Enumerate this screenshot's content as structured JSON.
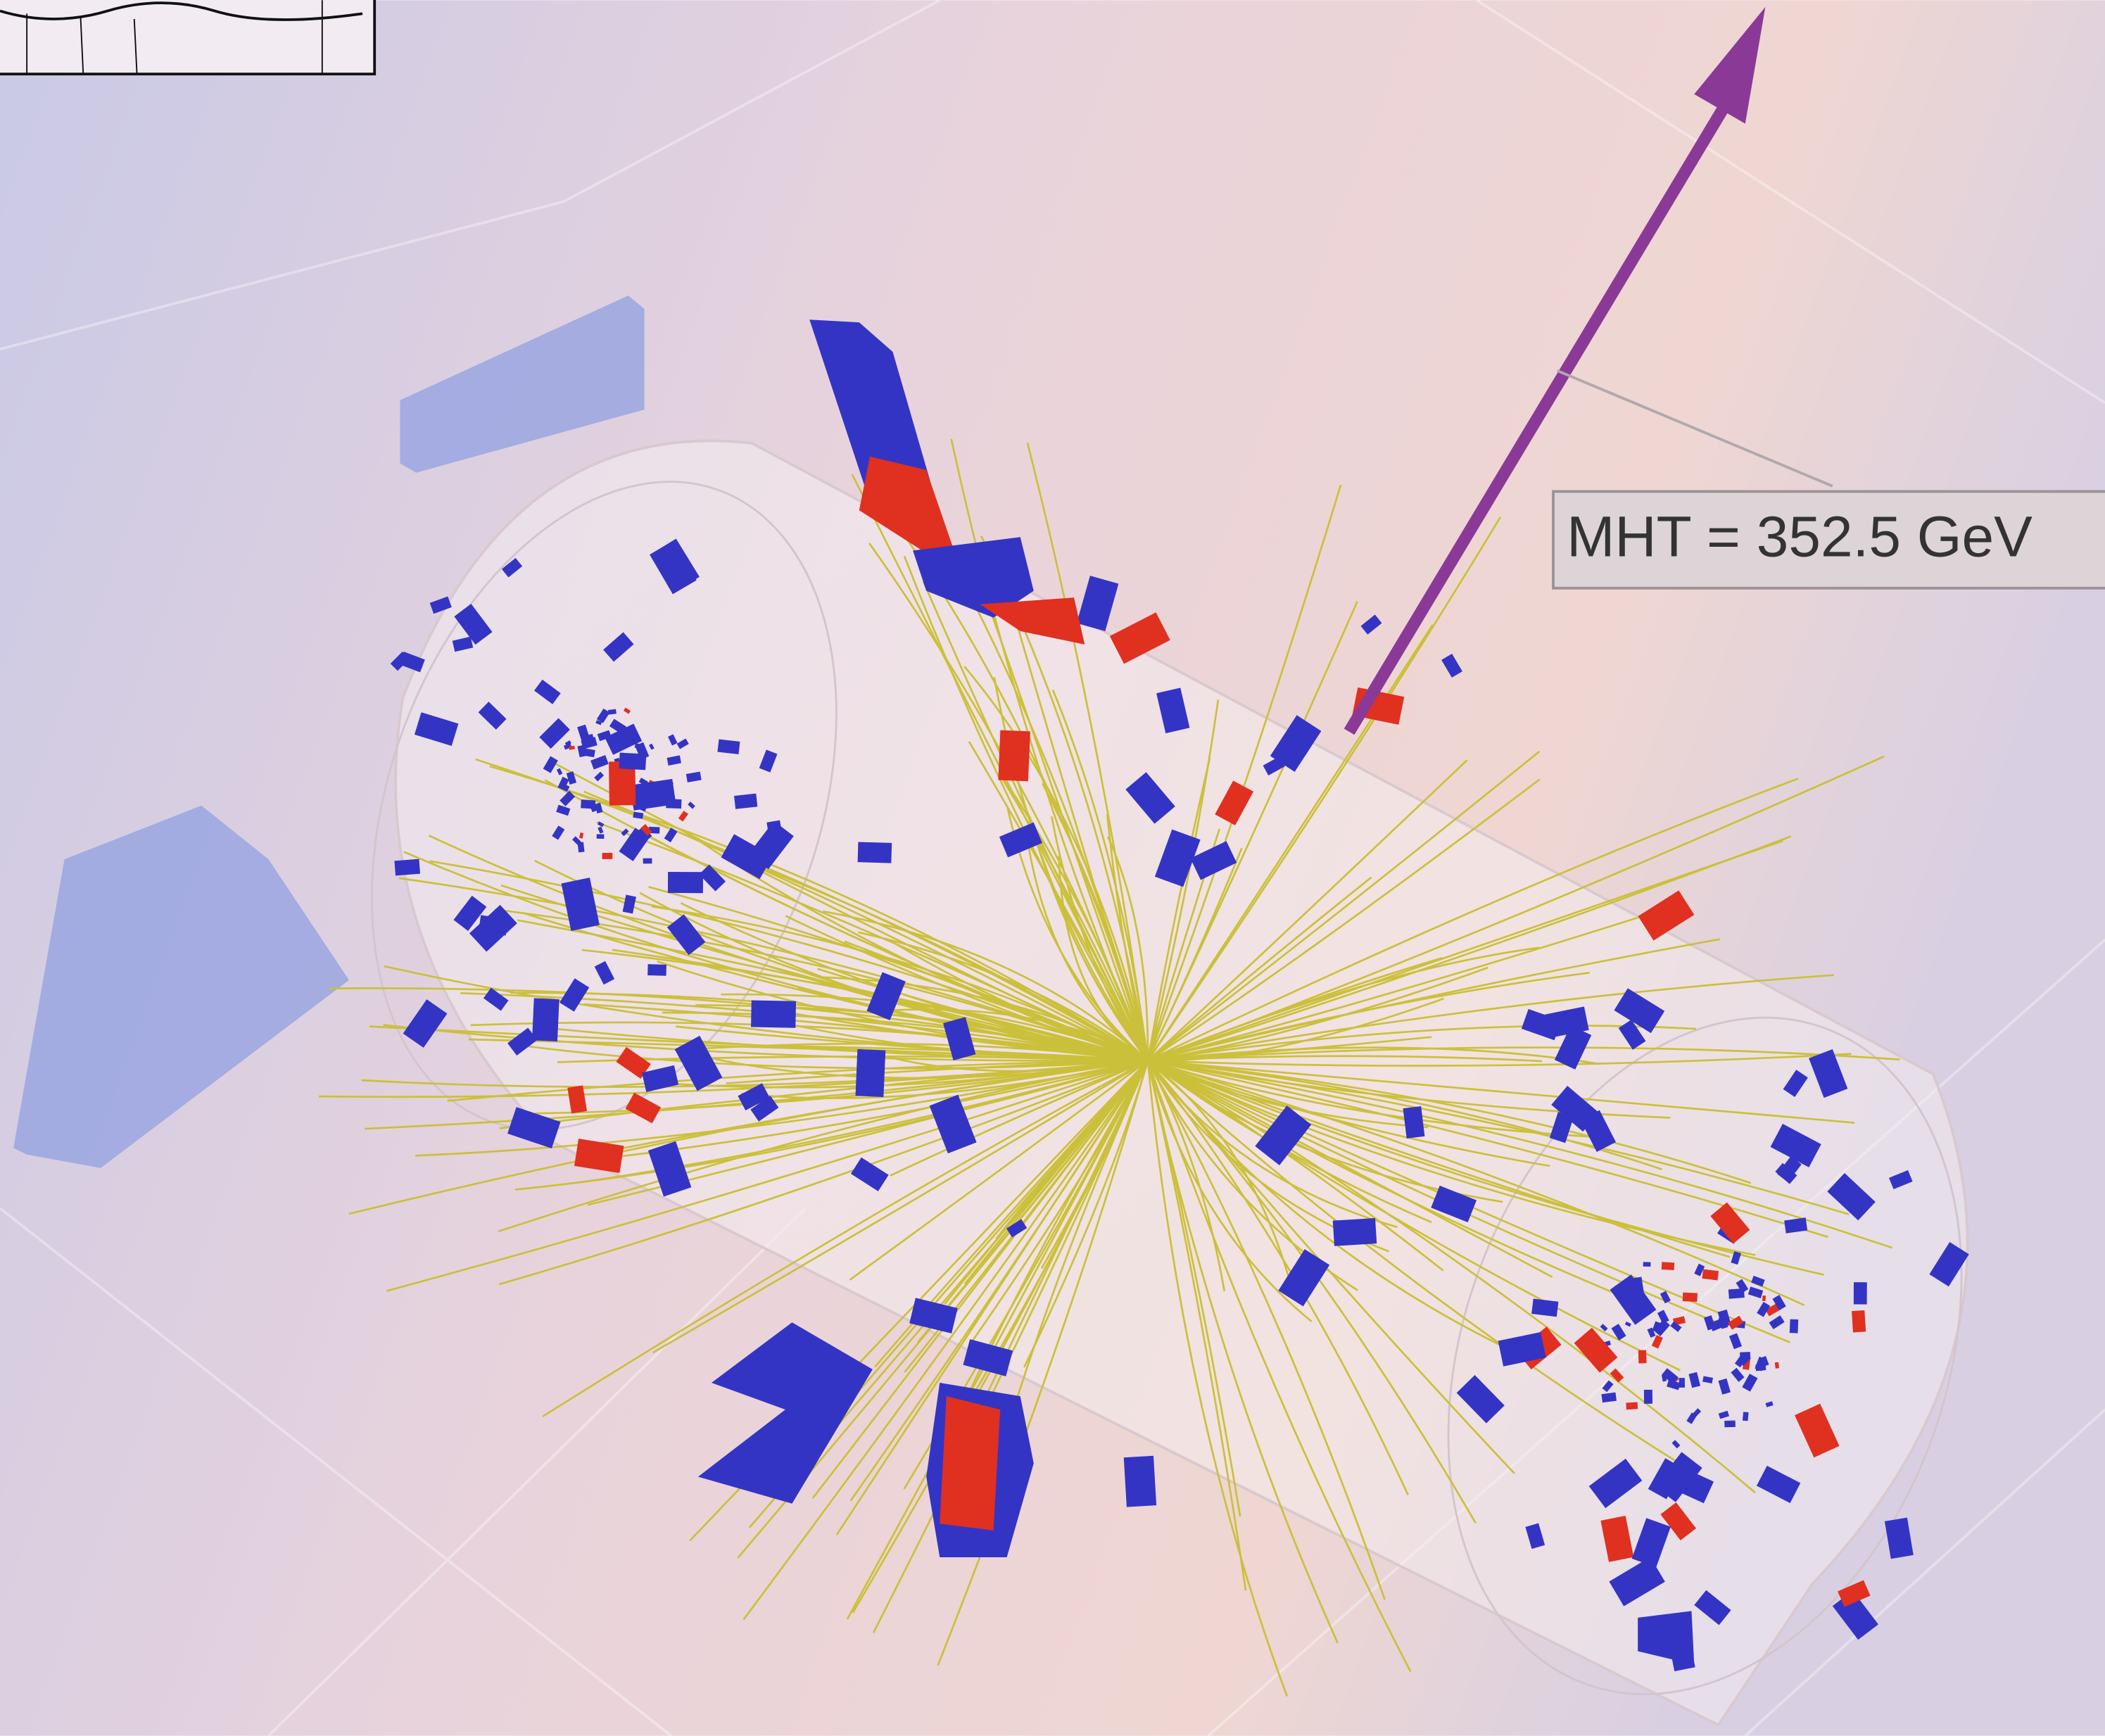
{
  "label": {
    "text": "MHT = 352.5 GeV"
  }
}
